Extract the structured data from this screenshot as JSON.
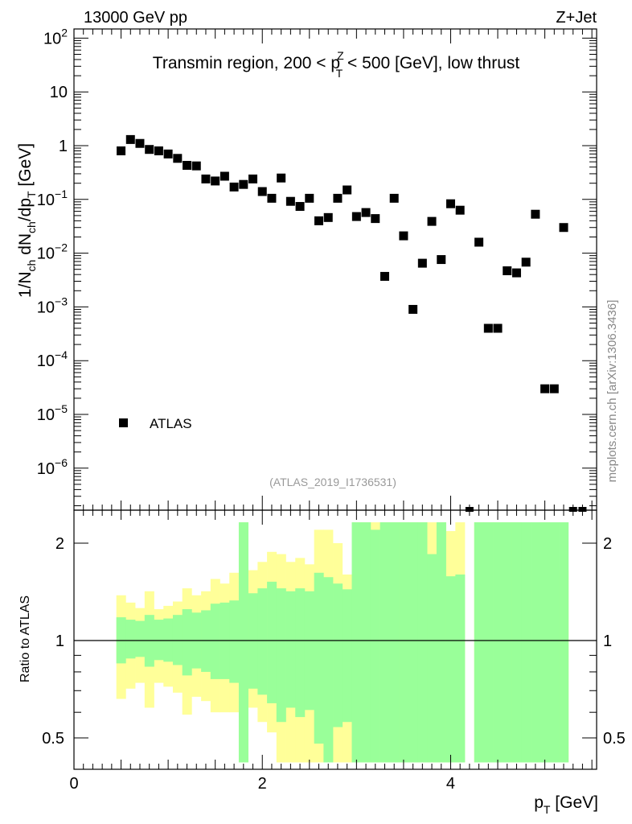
{
  "header": {
    "energy_label": "13000 GeV pp",
    "process_label": "Z+Jet"
  },
  "chart_data": [
    {
      "type": "scatter",
      "title_parts": {
        "pre": "Transmin region, 200 < p",
        "sup": "Z",
        "sub": "T",
        "post": " < 500 [GeV], low thrust"
      },
      "ylabel": "1/N_ch dN_ch/dp_T [GeV]",
      "yscale": "log",
      "ylim": [
        2e-07,
        150
      ],
      "xlim": [
        0,
        5.55
      ],
      "yticks": [
        {
          "v": 100,
          "base": "10",
          "exp": "2"
        },
        {
          "v": 10,
          "base": "10",
          "exp": ""
        },
        {
          "v": 1,
          "base": "1",
          "exp": ""
        },
        {
          "v": 0.1,
          "base": "10",
          "exp": "−1"
        },
        {
          "v": 0.01,
          "base": "10",
          "exp": "−2"
        },
        {
          "v": 0.001,
          "base": "10",
          "exp": "−3"
        },
        {
          "v": 0.0001,
          "base": "10",
          "exp": "−4"
        },
        {
          "v": 1e-05,
          "base": "10",
          "exp": "−5"
        },
        {
          "v": 1e-06,
          "base": "10",
          "exp": "−6"
        }
      ],
      "series": [
        {
          "name": "ATLAS",
          "marker": "square",
          "color": "#000000",
          "x": [
            0.5,
            0.6,
            0.7,
            0.8,
            0.9,
            1.0,
            1.1,
            1.2,
            1.3,
            1.4,
            1.5,
            1.6,
            1.7,
            1.8,
            1.9,
            2.0,
            2.1,
            2.2,
            2.3,
            2.4,
            2.5,
            2.6,
            2.7,
            2.8,
            2.9,
            3.0,
            3.1,
            3.2,
            3.3,
            3.4,
            3.5,
            3.6,
            3.7,
            3.8,
            3.9,
            4.0,
            4.1,
            4.3,
            4.4,
            4.5,
            4.6,
            4.7,
            4.8,
            4.9,
            5.0,
            5.1,
            5.2
          ],
          "y": [
            0.8,
            1.3,
            1.1,
            0.85,
            0.8,
            0.7,
            0.58,
            0.43,
            0.42,
            0.24,
            0.22,
            0.27,
            0.17,
            0.19,
            0.24,
            0.14,
            0.105,
            0.25,
            0.092,
            0.074,
            0.105,
            0.04,
            0.046,
            0.105,
            0.15,
            0.048,
            0.057,
            0.044,
            0.0037,
            0.105,
            0.021,
            0.0009,
            0.0065,
            0.039,
            0.0076,
            0.083,
            0.063,
            0.016,
            0.0004,
            0.0004,
            0.0047,
            0.0043,
            0.0068,
            0.053,
            3e-05,
            3e-05,
            0.03
          ]
        }
      ],
      "legend": "bottom-left",
      "watermark": "(ATLAS_2019_I1736531)"
    },
    {
      "type": "bar",
      "ylabel": "Ratio to ATLAS",
      "xlabel_parts": {
        "pre": "p",
        "sub": "T",
        "post": " [GeV]"
      },
      "xlim": [
        0,
        5.55
      ],
      "ylim": [
        0.42,
        2.32
      ],
      "yticks": [
        "0.5",
        "1",
        "2"
      ],
      "xticks": [
        "0",
        "2",
        "4"
      ],
      "bin_edges": [
        0.45,
        0.55,
        0.65,
        0.75,
        0.85,
        0.95,
        1.05,
        1.15,
        1.25,
        1.35,
        1.45,
        1.55,
        1.65,
        1.75,
        1.85,
        1.95,
        2.05,
        2.15,
        2.25,
        2.35,
        2.45,
        2.55,
        2.65,
        2.75,
        2.85,
        2.95,
        3.05,
        3.15,
        3.25,
        3.35,
        3.45,
        3.55,
        3.65,
        3.75,
        3.85,
        3.95,
        4.05,
        4.15,
        4.25,
        4.35,
        4.45,
        4.55,
        4.65,
        4.75,
        4.85,
        4.95,
        5.05,
        5.15,
        5.25
      ],
      "band_yellow": {
        "name": "2 sigma",
        "color": "#ffff99",
        "lo": [
          0.66,
          0.71,
          0.74,
          0.62,
          0.74,
          0.72,
          0.69,
          0.59,
          0.67,
          0.65,
          0.6,
          0.6,
          0.6,
          0.42,
          0.62,
          0.56,
          0.52,
          0.42,
          0.42,
          0.42,
          0.42,
          0.42,
          0.42,
          0.42,
          0.42,
          0.42,
          0.42,
          0.42,
          0.42,
          0.42,
          0.42,
          0.42,
          0.42,
          0.42,
          0.42,
          0.42,
          0.42,
          null,
          0.42,
          0.42,
          0.42,
          0.42,
          0.42,
          0.42,
          0.42,
          0.42,
          0.42,
          0.42
        ],
        "hi": [
          1.38,
          1.31,
          1.26,
          1.42,
          1.25,
          1.28,
          1.32,
          1.45,
          1.38,
          1.42,
          1.55,
          1.5,
          1.62,
          2.32,
          1.65,
          1.75,
          1.88,
          1.85,
          1.75,
          1.8,
          1.72,
          2.2,
          2.2,
          2.0,
          1.6,
          2.32,
          2.32,
          2.32,
          2.32,
          2.32,
          2.32,
          2.32,
          2.32,
          2.32,
          2.32,
          2.18,
          2.32,
          null,
          2.32,
          2.32,
          2.32,
          2.32,
          2.32,
          1.65,
          1.65,
          2.32,
          1.65,
          1.65
        ]
      },
      "band_green": {
        "name": "1 sigma",
        "color": "#99ff99",
        "lo": [
          0.85,
          0.88,
          0.89,
          0.83,
          0.87,
          0.86,
          0.84,
          0.78,
          0.82,
          0.8,
          0.76,
          0.76,
          0.74,
          0.42,
          0.71,
          0.68,
          0.64,
          0.56,
          0.62,
          0.58,
          0.61,
          0.48,
          0.42,
          0.54,
          0.56,
          0.42,
          0.42,
          0.42,
          0.42,
          0.42,
          0.42,
          0.42,
          0.42,
          0.42,
          0.42,
          0.42,
          0.42,
          null,
          0.42,
          0.42,
          0.42,
          0.42,
          0.42,
          0.42,
          0.42,
          0.42,
          0.42,
          0.42
        ],
        "hi": [
          1.18,
          1.16,
          1.15,
          1.2,
          1.16,
          1.17,
          1.2,
          1.25,
          1.22,
          1.24,
          1.3,
          1.31,
          1.33,
          2.32,
          1.4,
          1.45,
          1.52,
          1.45,
          1.42,
          1.45,
          1.42,
          1.62,
          1.57,
          1.5,
          1.44,
          2.32,
          2.32,
          2.2,
          2.32,
          2.32,
          2.32,
          2.32,
          2.32,
          1.85,
          2.32,
          1.58,
          1.6,
          null,
          2.32,
          2.32,
          2.32,
          2.32,
          2.32,
          2.32,
          2.32,
          2.32,
          2.32,
          2.32
        ]
      },
      "reference_line": 1
    }
  ],
  "sidebar": {
    "citation": "mcplots.cern.ch [arXiv:1306.3436]"
  }
}
